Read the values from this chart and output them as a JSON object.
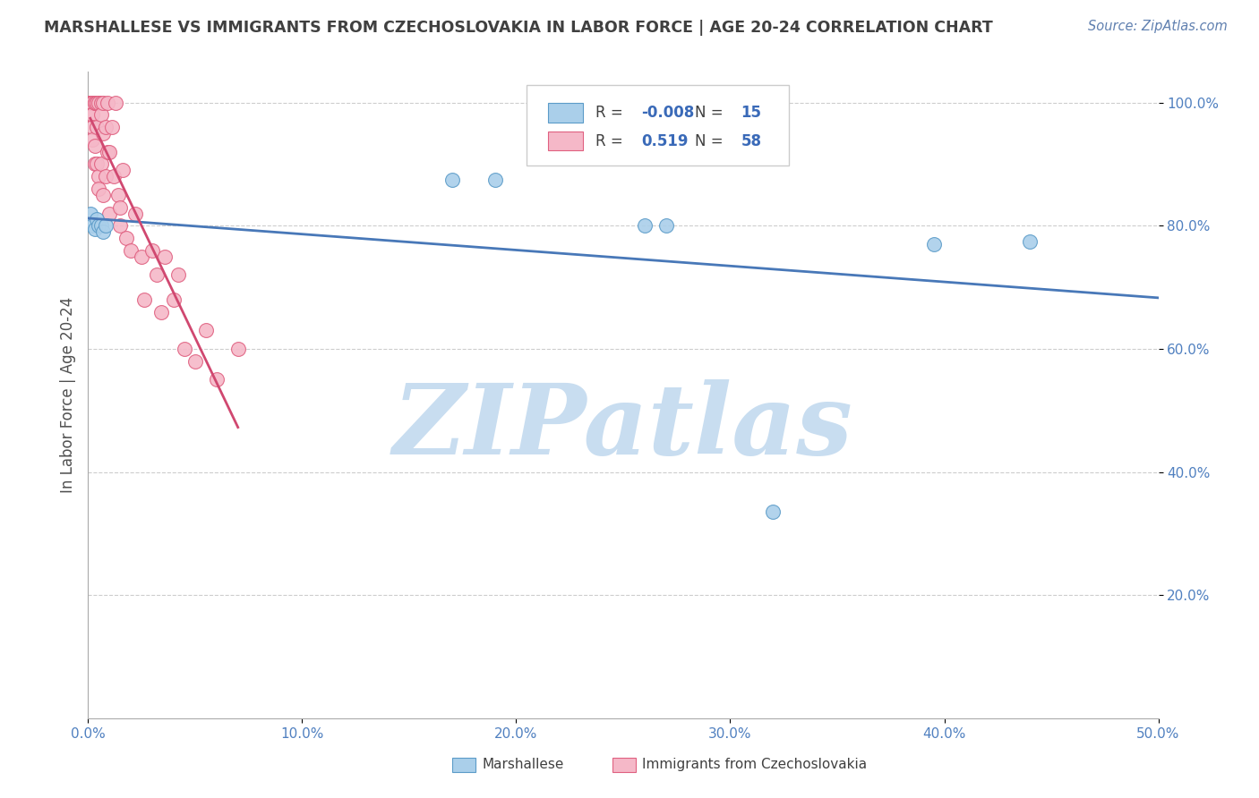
{
  "title": "MARSHALLESE VS IMMIGRANTS FROM CZECHOSLOVAKIA IN LABOR FORCE | AGE 20-24 CORRELATION CHART",
  "source": "Source: ZipAtlas.com",
  "ylabel": "In Labor Force | Age 20-24",
  "xlim": [
    0.0,
    0.5
  ],
  "ylim": [
    0.0,
    1.05
  ],
  "xticks": [
    0.0,
    0.1,
    0.2,
    0.3,
    0.4,
    0.5
  ],
  "xtick_labels": [
    "0.0%",
    "10.0%",
    "20.0%",
    "30.0%",
    "40.0%",
    "50.0%"
  ],
  "yticks": [
    0.2,
    0.4,
    0.6,
    0.8,
    1.0
  ],
  "ytick_labels": [
    "20.0%",
    "40.0%",
    "60.0%",
    "80.0%",
    "100.0%"
  ],
  "legend_1_label": "Marshallese",
  "legend_2_label": "Immigrants from Czechoslovakia",
  "legend_r1": "-0.008",
  "legend_n1": "15",
  "legend_r2": "0.519",
  "legend_n2": "58",
  "blue_color": "#aacfea",
  "pink_color": "#f5b8c8",
  "blue_edge_color": "#5b9bc8",
  "pink_edge_color": "#e06080",
  "blue_line_color": "#4878b8",
  "pink_line_color": "#d04870",
  "watermark": "ZIPatlas",
  "watermark_color": "#c8ddf0",
  "background_color": "#ffffff",
  "grid_color": "#c8c8c8",
  "title_color": "#404040",
  "axis_label_color": "#505050",
  "tick_color": "#5080c0",
  "blue_scatter_x": [
    0.001,
    0.002,
    0.003,
    0.004,
    0.005,
    0.006,
    0.007,
    0.008,
    0.17,
    0.19,
    0.26,
    0.27,
    0.32,
    0.395,
    0.44
  ],
  "blue_scatter_y": [
    0.82,
    0.8,
    0.795,
    0.81,
    0.8,
    0.8,
    0.79,
    0.8,
    0.875,
    0.875,
    0.8,
    0.8,
    0.335,
    0.77,
    0.775
  ],
  "pink_scatter_x": [
    0.001,
    0.001,
    0.001,
    0.001,
    0.001,
    0.001,
    0.002,
    0.002,
    0.002,
    0.002,
    0.002,
    0.002,
    0.003,
    0.003,
    0.003,
    0.003,
    0.004,
    0.004,
    0.004,
    0.004,
    0.005,
    0.005,
    0.005,
    0.006,
    0.006,
    0.006,
    0.007,
    0.007,
    0.007,
    0.008,
    0.008,
    0.009,
    0.009,
    0.01,
    0.01,
    0.011,
    0.012,
    0.013,
    0.014,
    0.015,
    0.015,
    0.016,
    0.018,
    0.02,
    0.022,
    0.025,
    0.026,
    0.03,
    0.032,
    0.034,
    0.036,
    0.04,
    0.042,
    0.045,
    0.05,
    0.055,
    0.06,
    0.07
  ],
  "pink_scatter_y": [
    1.0,
    1.0,
    1.0,
    1.0,
    1.0,
    0.98,
    1.0,
    1.0,
    1.0,
    0.98,
    0.96,
    0.94,
    1.0,
    1.0,
    0.93,
    0.9,
    1.0,
    1.0,
    0.96,
    0.9,
    1.0,
    0.88,
    0.86,
    1.0,
    0.98,
    0.9,
    1.0,
    0.95,
    0.85,
    0.96,
    0.88,
    1.0,
    0.92,
    0.92,
    0.82,
    0.96,
    0.88,
    1.0,
    0.85,
    0.83,
    0.8,
    0.89,
    0.78,
    0.76,
    0.82,
    0.75,
    0.68,
    0.76,
    0.72,
    0.66,
    0.75,
    0.68,
    0.72,
    0.6,
    0.58,
    0.63,
    0.55,
    0.6
  ]
}
